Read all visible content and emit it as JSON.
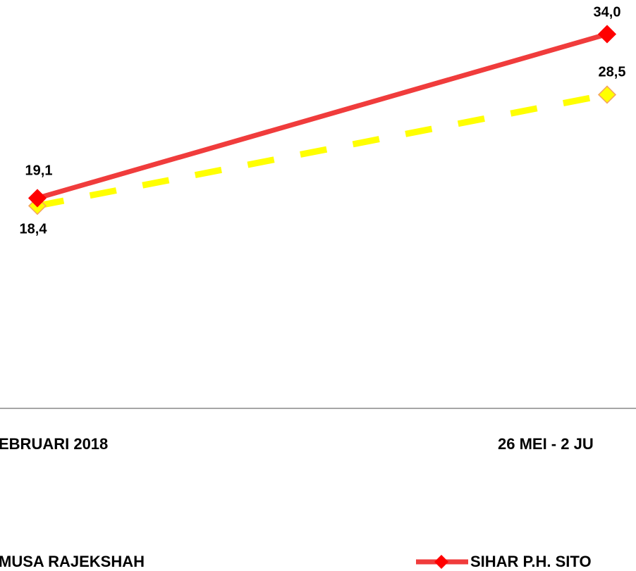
{
  "chart_data": {
    "type": "line",
    "categories": [
      "EBRUARI 2018",
      "26 MEI - 2 JU"
    ],
    "series": [
      {
        "name": "MUSA RAJEKSHAH",
        "color": "#ffff00",
        "marker_edge": "#f4a460",
        "dash": true,
        "values": [
          18.4,
          28.5
        ],
        "value_labels": [
          "18,4",
          "28,5"
        ]
      },
      {
        "name": "SIHAR P.H. SITO",
        "color": "#f03c3c",
        "marker_color": "#ff0000",
        "dash": false,
        "values": [
          19.1,
          34.0
        ],
        "value_labels": [
          "19,1",
          "34,0"
        ]
      }
    ],
    "ylim": [
      0,
      37.1
    ],
    "legend": "bottom"
  }
}
